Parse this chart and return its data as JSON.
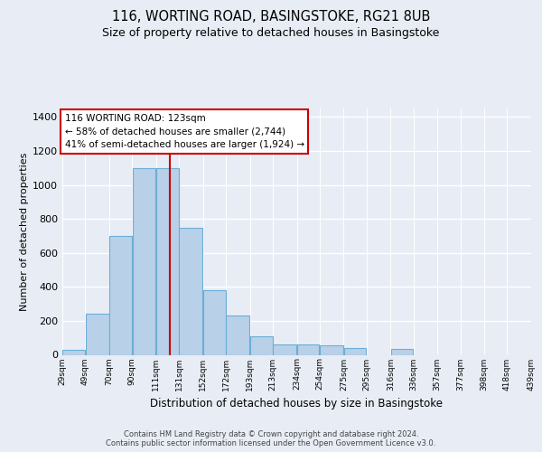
{
  "title1": "116, WORTING ROAD, BASINGSTOKE, RG21 8UB",
  "title2": "Size of property relative to detached houses in Basingstoke",
  "xlabel": "Distribution of detached houses by size in Basingstoke",
  "ylabel": "Number of detached properties",
  "annotation_line1": "116 WORTING ROAD: 123sqm",
  "annotation_line2": "← 58% of detached houses are smaller (2,744)",
  "annotation_line3": "41% of semi-detached houses are larger (1,924) →",
  "property_size": 123,
  "bin_edges": [
    29,
    49,
    70,
    90,
    111,
    131,
    152,
    172,
    193,
    213,
    234,
    254,
    275,
    295,
    316,
    336,
    357,
    377,
    398,
    418,
    439
  ],
  "bin_labels": [
    "29sqm",
    "49sqm",
    "70sqm",
    "90sqm",
    "111sqm",
    "131sqm",
    "152sqm",
    "172sqm",
    "193sqm",
    "213sqm",
    "234sqm",
    "254sqm",
    "275sqm",
    "295sqm",
    "316sqm",
    "336sqm",
    "357sqm",
    "377sqm",
    "398sqm",
    "418sqm",
    "439sqm"
  ],
  "bar_heights": [
    30,
    240,
    700,
    1100,
    1100,
    750,
    380,
    230,
    110,
    60,
    60,
    55,
    40,
    0,
    35,
    0,
    0,
    0,
    0,
    0
  ],
  "bar_color": "#b8d0e8",
  "bar_edge_color": "#6baed6",
  "background_color": "#e8edf5",
  "grid_color": "#ffffff",
  "vline_color": "#cc0000",
  "annotation_box_color": "#ffffff",
  "annotation_box_edge": "#cc0000",
  "footer1": "Contains HM Land Registry data © Crown copyright and database right 2024.",
  "footer2": "Contains public sector information licensed under the Open Government Licence v3.0.",
  "ylim": [
    0,
    1450
  ],
  "yticks": [
    0,
    200,
    400,
    600,
    800,
    1000,
    1200,
    1400
  ]
}
